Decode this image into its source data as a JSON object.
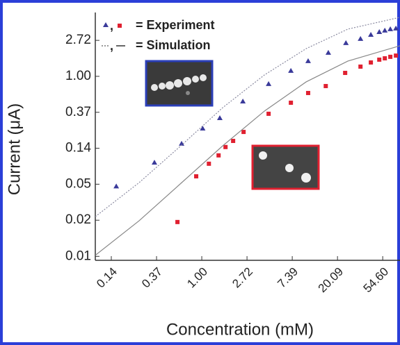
{
  "chart_data": {
    "type": "scatter",
    "xlabel": "Concentration (mM)",
    "ylabel": "Current (μA)",
    "xscale": "log",
    "yscale": "log",
    "xlim": [
      0.095,
      80
    ],
    "ylim": [
      0.006,
      5.9
    ],
    "xticks": [
      {
        "value": 0.1353,
        "label": "0.14"
      },
      {
        "value": 0.3679,
        "label": "0.37"
      },
      {
        "value": 1,
        "label": "1.00"
      },
      {
        "value": 2.718,
        "label": "2.72"
      },
      {
        "value": 7.389,
        "label": "7.39"
      },
      {
        "value": 20.09,
        "label": "20.09"
      },
      {
        "value": 54.6,
        "label": "54.60"
      }
    ],
    "yticks": [
      {
        "value": 0.0067,
        "label": "0.01"
      },
      {
        "value": 0.0183,
        "label": "0.02"
      },
      {
        "value": 0.0498,
        "label": "0.05"
      },
      {
        "value": 0.1353,
        "label": "0.14"
      },
      {
        "value": 0.3679,
        "label": "0.37"
      },
      {
        "value": 1,
        "label": "1.00"
      },
      {
        "value": 2.718,
        "label": "2.72"
      }
    ],
    "legend": [
      {
        "separator": ",",
        "label": "= Experiment"
      },
      {
        "separator": ",",
        "label": "= Simulation"
      }
    ],
    "series": [
      {
        "color": "#3a3a9a",
        "marker": "triangle",
        "x": [
          0.151,
          0.351,
          0.64,
          1.02,
          1.49,
          2.48,
          4.38,
          7.17,
          10.5,
          16.4,
          24.2,
          33.4,
          42.0,
          50.6,
          57.2,
          64.6,
          73.1
        ],
        "values": [
          0.047,
          0.091,
          0.154,
          0.235,
          0.314,
          0.499,
          0.809,
          1.17,
          1.53,
          1.93,
          2.53,
          2.84,
          3.18,
          3.44,
          3.58,
          3.72,
          3.79
        ]
      },
      {
        "color": "#e02030",
        "marker": "square",
        "x": [
          0.584,
          0.884,
          1.17,
          1.45,
          1.69,
          2.0,
          2.52,
          4.38,
          7.17,
          10.5,
          15.5,
          23.8,
          33.4,
          42.0,
          50.6,
          57.2,
          64.6,
          73.1
        ],
        "values": [
          0.0174,
          0.062,
          0.088,
          0.111,
          0.14,
          0.166,
          0.213,
          0.353,
          0.48,
          0.629,
          0.763,
          1.1,
          1.31,
          1.47,
          1.59,
          1.65,
          1.72,
          1.78
        ]
      },
      {
        "color": "#8a8aa0",
        "marker": "dotted-line",
        "x": [
          0.095,
          0.25,
          0.63,
          1.59,
          4.0,
          10.05,
          25.3,
          80
        ],
        "values": [
          0.0202,
          0.052,
          0.145,
          0.419,
          1.04,
          2.16,
          3.72,
          5.16
        ]
      },
      {
        "color": "#888888",
        "marker": "solid-line",
        "x": [
          0.095,
          0.25,
          0.63,
          1.59,
          4.0,
          10.05,
          25.3,
          80
        ],
        "values": [
          0.0069,
          0.018,
          0.051,
          0.145,
          0.381,
          0.857,
          1.53,
          2.34
        ]
      }
    ]
  }
}
